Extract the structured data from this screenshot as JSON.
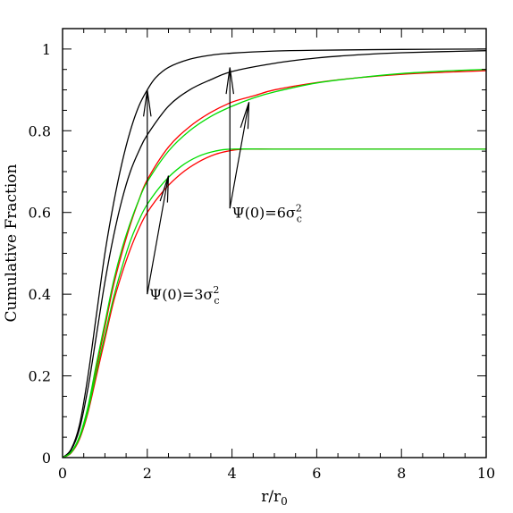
{
  "chart_data": {
    "type": "line",
    "xlabel": "r/r",
    "xlabel_sub": "0",
    "ylabel": "Cumulative Fraction",
    "xlim": [
      0,
      10
    ],
    "ylim": [
      0,
      1.05
    ],
    "grid": false,
    "x_ticks": [
      "0",
      "2",
      "4",
      "6",
      "8",
      "10"
    ],
    "y_ticks": [
      "0",
      "0.2",
      "0.4",
      "0.6",
      "0.8",
      "1"
    ],
    "series": [
      {
        "color": "#000000",
        "points": [
          [
            0,
            0
          ],
          [
            0.2,
            0.02
          ],
          [
            0.4,
            0.08
          ],
          [
            0.6,
            0.2
          ],
          [
            0.8,
            0.35
          ],
          [
            1,
            0.5
          ],
          [
            1.2,
            0.62
          ],
          [
            1.4,
            0.72
          ],
          [
            1.6,
            0.8
          ],
          [
            1.8,
            0.86
          ],
          [
            2,
            0.9
          ],
          [
            2.2,
            0.93
          ],
          [
            2.5,
            0.955
          ],
          [
            3,
            0.975
          ],
          [
            3.5,
            0.985
          ],
          [
            4,
            0.99
          ],
          [
            5,
            0.995
          ],
          [
            6,
            0.997
          ],
          [
            8,
            0.999
          ],
          [
            10,
            1.0
          ]
        ]
      },
      {
        "color": "#000000",
        "points": [
          [
            0,
            0
          ],
          [
            0.2,
            0.018
          ],
          [
            0.4,
            0.07
          ],
          [
            0.6,
            0.17
          ],
          [
            0.8,
            0.3
          ],
          [
            1,
            0.43
          ],
          [
            1.2,
            0.54
          ],
          [
            1.4,
            0.63
          ],
          [
            1.6,
            0.7
          ],
          [
            1.8,
            0.75
          ],
          [
            2,
            0.79
          ],
          [
            2.5,
            0.86
          ],
          [
            3,
            0.9
          ],
          [
            3.5,
            0.925
          ],
          [
            4,
            0.945
          ],
          [
            5,
            0.965
          ],
          [
            6,
            0.978
          ],
          [
            7,
            0.986
          ],
          [
            8,
            0.991
          ],
          [
            10,
            0.996
          ]
        ]
      },
      {
        "color": "#ff0000",
        "points": [
          [
            0,
            0
          ],
          [
            0.2,
            0.012
          ],
          [
            0.4,
            0.05
          ],
          [
            0.6,
            0.12
          ],
          [
            0.8,
            0.22
          ],
          [
            1,
            0.32
          ],
          [
            1.2,
            0.42
          ],
          [
            1.4,
            0.5
          ],
          [
            1.6,
            0.57
          ],
          [
            1.8,
            0.63
          ],
          [
            2,
            0.68
          ],
          [
            2.5,
            0.76
          ],
          [
            3,
            0.81
          ],
          [
            3.5,
            0.845
          ],
          [
            4,
            0.87
          ],
          [
            4.5,
            0.885
          ],
          [
            5,
            0.9
          ],
          [
            6,
            0.918
          ],
          [
            7,
            0.93
          ],
          [
            8,
            0.938
          ],
          [
            9,
            0.943
          ],
          [
            10,
            0.947
          ]
        ]
      },
      {
        "color": "#00dd00",
        "points": [
          [
            0,
            0
          ],
          [
            0.2,
            0.013
          ],
          [
            0.4,
            0.052
          ],
          [
            0.6,
            0.125
          ],
          [
            0.8,
            0.23
          ],
          [
            1,
            0.33
          ],
          [
            1.2,
            0.43
          ],
          [
            1.4,
            0.51
          ],
          [
            1.6,
            0.575
          ],
          [
            1.8,
            0.63
          ],
          [
            2,
            0.675
          ],
          [
            2.5,
            0.75
          ],
          [
            3,
            0.8
          ],
          [
            3.5,
            0.835
          ],
          [
            4,
            0.86
          ],
          [
            4.5,
            0.88
          ],
          [
            5,
            0.895
          ],
          [
            6,
            0.917
          ],
          [
            7,
            0.93
          ],
          [
            8,
            0.94
          ],
          [
            9,
            0.946
          ],
          [
            10,
            0.95
          ]
        ]
      },
      {
        "color": "#ff0000",
        "points": [
          [
            0,
            0
          ],
          [
            0.2,
            0.011
          ],
          [
            0.4,
            0.045
          ],
          [
            0.6,
            0.11
          ],
          [
            0.8,
            0.2
          ],
          [
            1,
            0.29
          ],
          [
            1.2,
            0.38
          ],
          [
            1.4,
            0.45
          ],
          [
            1.6,
            0.51
          ],
          [
            1.8,
            0.56
          ],
          [
            2,
            0.6
          ],
          [
            2.4,
            0.655
          ],
          [
            2.8,
            0.695
          ],
          [
            3.2,
            0.723
          ],
          [
            3.6,
            0.742
          ],
          [
            4,
            0.752
          ],
          [
            4.3,
            0.755
          ],
          [
            5,
            0.755
          ],
          [
            6,
            0.755
          ],
          [
            8,
            0.755
          ],
          [
            10,
            0.755
          ]
        ]
      },
      {
        "color": "#00dd00",
        "points": [
          [
            0,
            0
          ],
          [
            0.2,
            0.012
          ],
          [
            0.4,
            0.048
          ],
          [
            0.6,
            0.115
          ],
          [
            0.8,
            0.21
          ],
          [
            1,
            0.3
          ],
          [
            1.2,
            0.39
          ],
          [
            1.4,
            0.465
          ],
          [
            1.6,
            0.53
          ],
          [
            1.8,
            0.58
          ],
          [
            2,
            0.62
          ],
          [
            2.4,
            0.675
          ],
          [
            2.8,
            0.713
          ],
          [
            3.2,
            0.737
          ],
          [
            3.6,
            0.75
          ],
          [
            4,
            0.755
          ],
          [
            5,
            0.755
          ],
          [
            6,
            0.755
          ],
          [
            8,
            0.755
          ],
          [
            10,
            0.755
          ]
        ]
      }
    ],
    "annotations": [
      {
        "label_main": "Ψ(0)=3σ",
        "label_sup": "2",
        "label_sub": "c",
        "anchor": [
          2.05,
          0.4
        ],
        "arrows": [
          {
            "from": [
              2.0,
              0.4
            ],
            "to": [
              2.0,
              0.9
            ]
          },
          {
            "from": [
              2.0,
              0.4
            ],
            "to": [
              2.5,
              0.69
            ]
          }
        ]
      },
      {
        "label_main": "Ψ(0)=6σ",
        "label_sup": "2",
        "label_sub": "c",
        "anchor": [
          4.0,
          0.6
        ],
        "arrows": [
          {
            "from": [
              3.95,
              0.61
            ],
            "to": [
              3.95,
              0.955
            ]
          },
          {
            "from": [
              3.95,
              0.61
            ],
            "to": [
              4.4,
              0.87
            ]
          }
        ]
      }
    ]
  }
}
